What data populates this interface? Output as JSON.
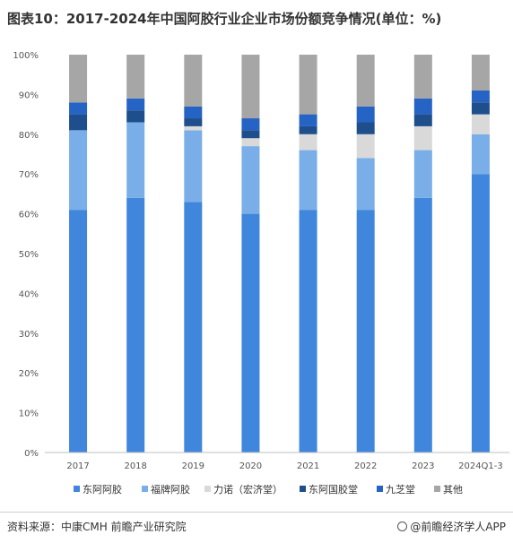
{
  "title": "图表10：2017-2024年中国阿胶行业企业市场份额竞争情况(单位：%)",
  "footer": {
    "source": "资料来源：中康CMH 前瞻产业研究院",
    "brand": "@前瞻经济学人APP"
  },
  "chart_data": {
    "type": "bar",
    "stacked": true,
    "categories": [
      "2017",
      "2018",
      "2019",
      "2020",
      "2021",
      "2022",
      "2023",
      "2024Q1-3"
    ],
    "series": [
      {
        "name": "东阿阿胶",
        "color": "#3f86dc",
        "values": [
          61,
          64,
          63,
          60,
          61,
          61,
          64,
          70
        ]
      },
      {
        "name": "福牌阿胶",
        "color": "#7aaee8",
        "values": [
          20,
          19,
          18,
          17,
          15,
          13,
          12,
          10
        ]
      },
      {
        "name": "力诺（宏济堂）",
        "color": "#d9d9d9",
        "values": [
          0,
          0,
          1,
          2,
          4,
          6,
          6,
          5
        ]
      },
      {
        "name": "东阿国胶堂",
        "color": "#1f4e8c",
        "values": [
          4,
          3,
          2,
          2,
          2,
          3,
          3,
          3
        ]
      },
      {
        "name": "九芝堂",
        "color": "#2563c4",
        "values": [
          3,
          3,
          3,
          3,
          3,
          4,
          4,
          3
        ]
      },
      {
        "name": "其他",
        "color": "#a6a6a6",
        "values": [
          12,
          11,
          13,
          16,
          15,
          13,
          11,
          9
        ]
      }
    ],
    "ylim": [
      0,
      100
    ],
    "yticks": [
      "0%",
      "10%",
      "20%",
      "30%",
      "40%",
      "50%",
      "60%",
      "70%",
      "80%",
      "90%",
      "100%"
    ],
    "legend_position": "bottom",
    "grid": false
  }
}
